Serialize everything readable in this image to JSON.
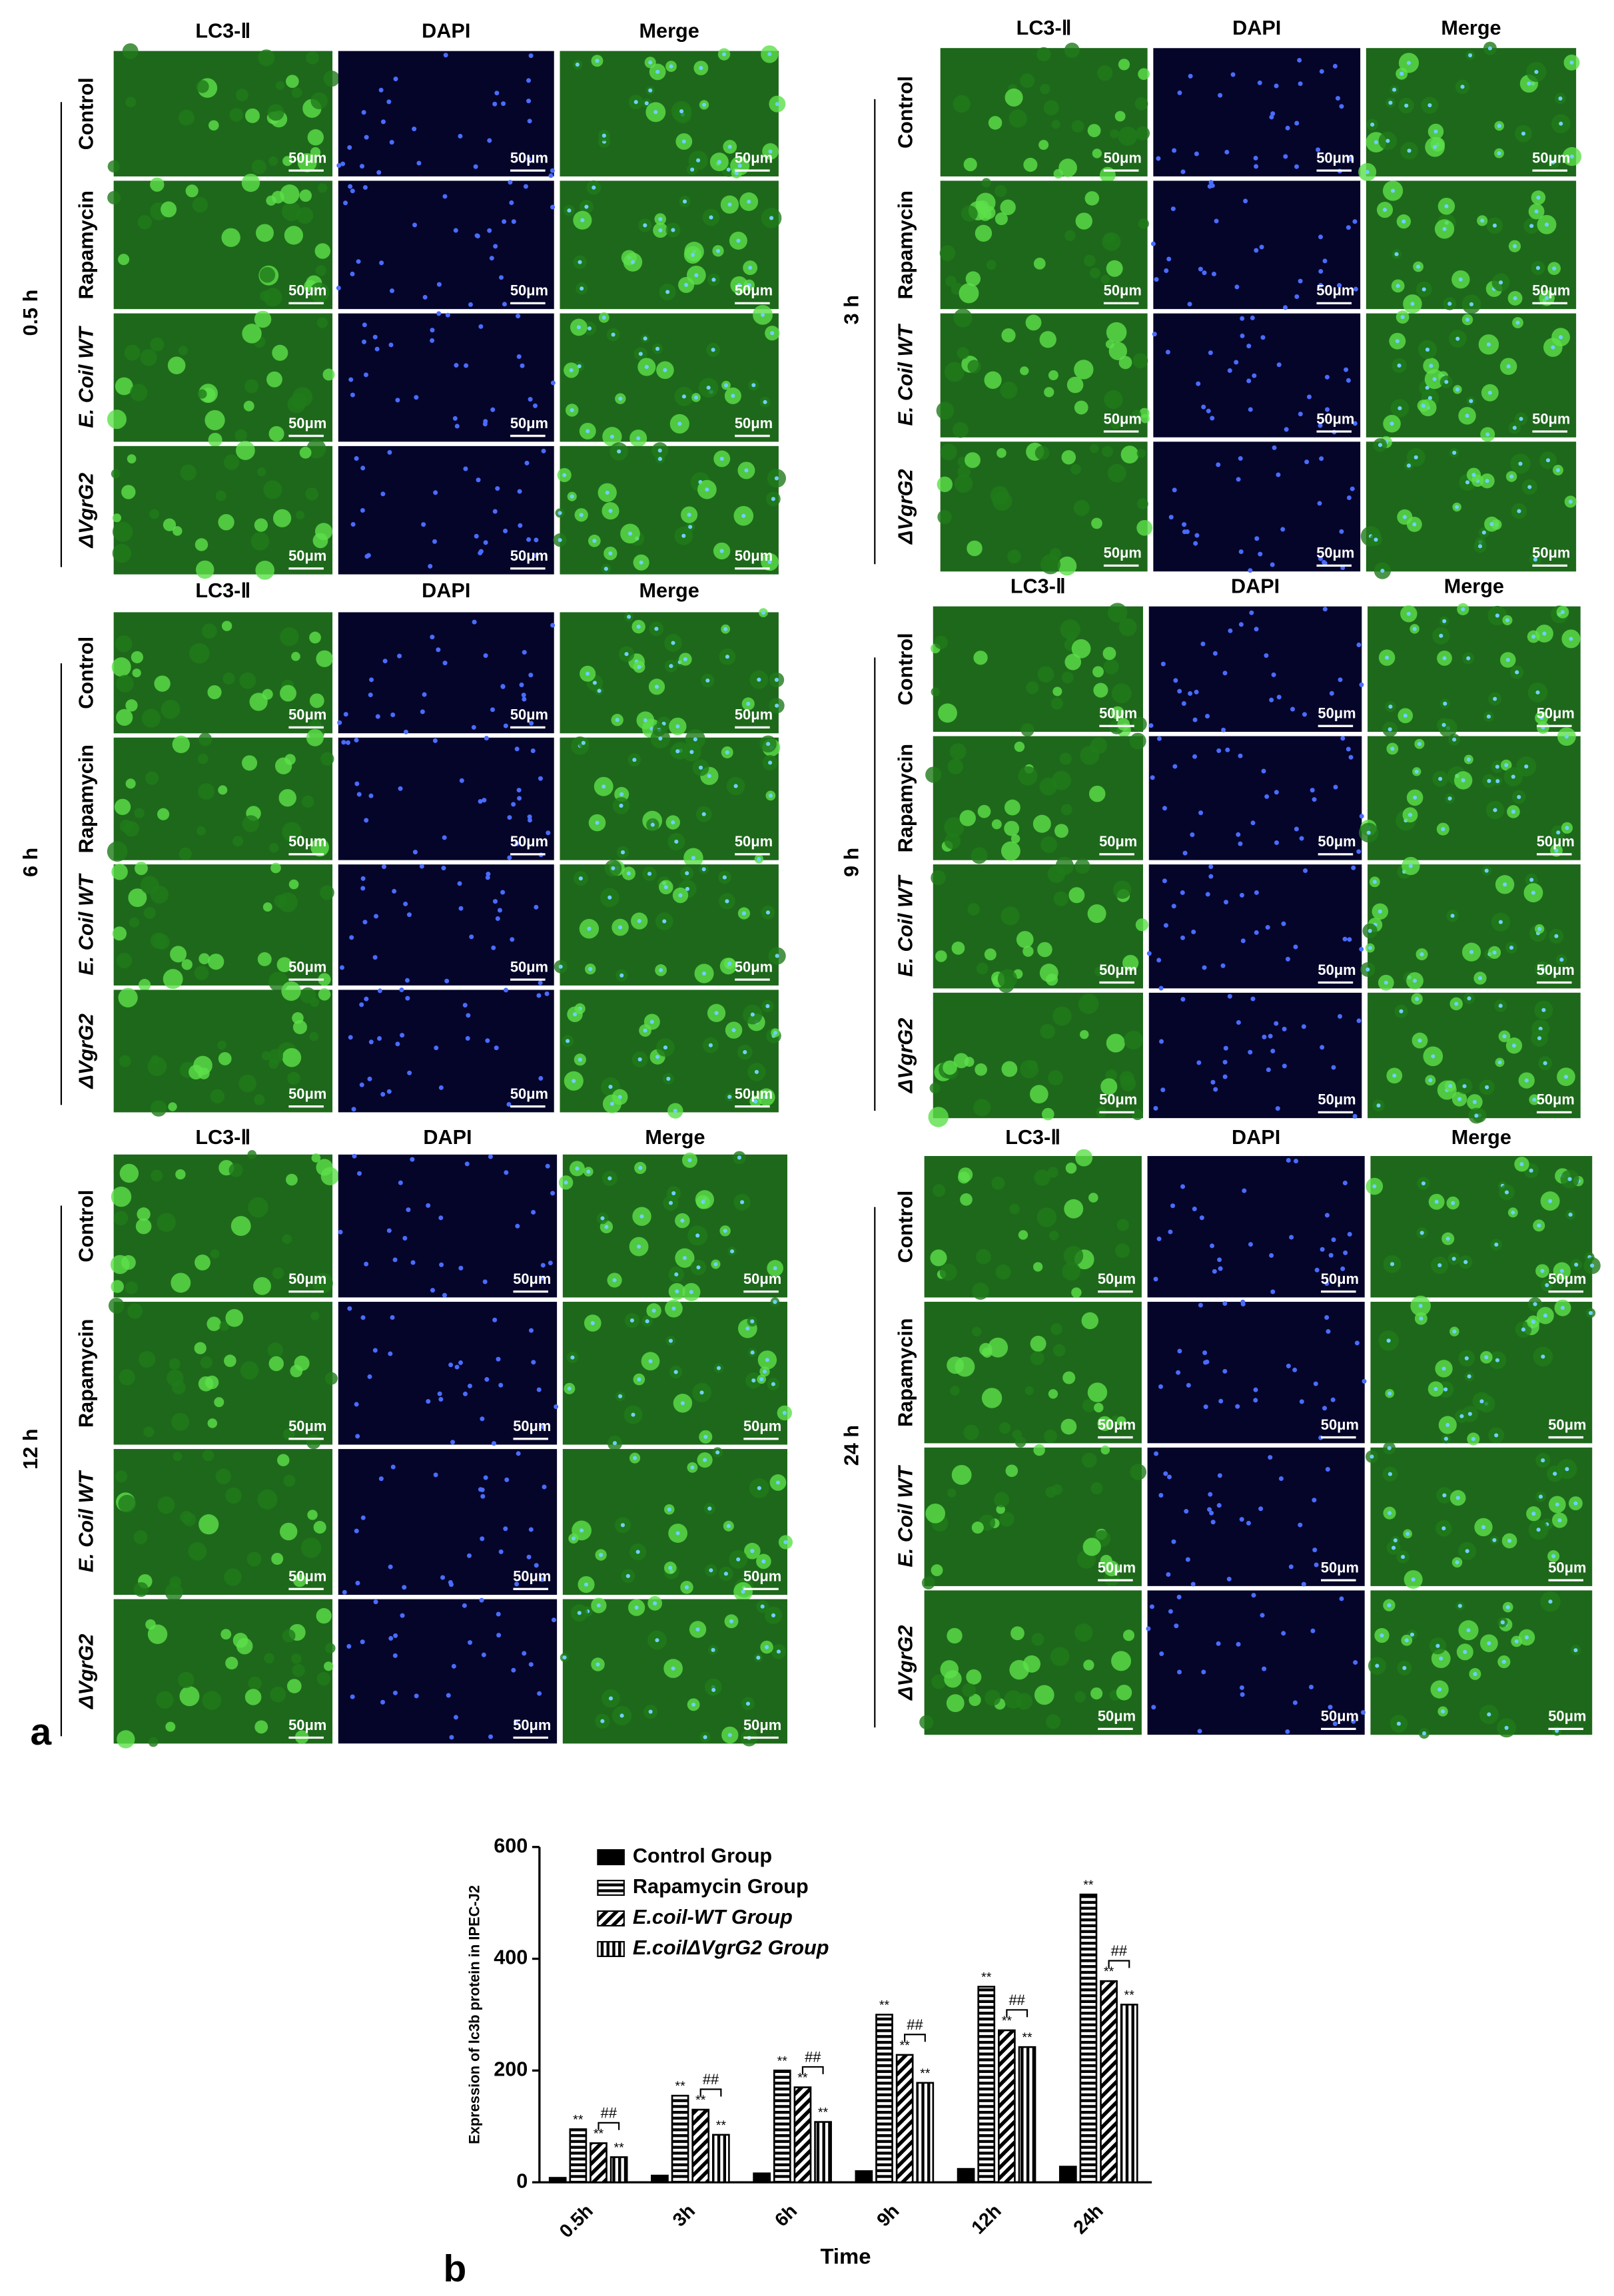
{
  "figure_a": {
    "label": "a",
    "scale_bar": "50μm",
    "panels": [
      {
        "time": "0.5 h",
        "columns": [
          "LC3-Ⅱ",
          "DAPI",
          "Merge"
        ],
        "rows": [
          "Control",
          "Rapamycin",
          "E. Coil WT",
          "ΔVgrG2"
        ]
      },
      {
        "time": "3 h",
        "columns": [
          "LC3-Ⅱ",
          "DAPI",
          "Merge"
        ],
        "rows": [
          "Control",
          "Rapamycin",
          "E. Coil WT",
          "ΔVgrG2"
        ]
      },
      {
        "time": "6 h",
        "columns": [
          "LC3-Ⅱ",
          "DAPI",
          "Merge"
        ],
        "rows": [
          "Control",
          "Rapamycin",
          "E. Coil WT",
          "ΔVgrG2"
        ]
      },
      {
        "time": "9 h",
        "columns": [
          "LC3-Ⅱ",
          "DAPI",
          "Merge"
        ],
        "rows": [
          "Control",
          "Rapamycin",
          "E. Coil WT",
          "ΔVgrG2"
        ]
      },
      {
        "time": "12 h",
        "columns": [
          "LC3-Ⅱ",
          "DAPI",
          "Merge"
        ],
        "rows": [
          "Control",
          "Rapamycin",
          "E. Coil WT",
          "ΔVgrG2"
        ]
      },
      {
        "time": "24 h",
        "columns": [
          "LC3-Ⅱ",
          "DAPI",
          "Merge"
        ],
        "rows": [
          "Control",
          "Rapamycin",
          "E. Coil WT",
          "ΔVgrG2"
        ]
      }
    ]
  },
  "chart_data": {
    "type": "bar",
    "panel_label": "b",
    "y_label": "Expression of lc3b protein in IPEC-J2",
    "x_label": "Time",
    "categories": [
      "0.5h",
      "3h",
      "6h",
      "9h",
      "12h",
      "24h"
    ],
    "series": [
      {
        "name": "Control Group",
        "color": "#000000",
        "hatch": "solid",
        "values": [
          8,
          12,
          16,
          20,
          24,
          28
        ]
      },
      {
        "name": "Rapamycin Group",
        "color": "#000000",
        "hatch": "horizontal",
        "values": [
          95,
          155,
          200,
          300,
          350,
          515
        ]
      },
      {
        "name": "E.coil-WT Group",
        "color": "#000000",
        "hatch": "diagonal",
        "values": [
          70,
          130,
          170,
          228,
          272,
          360
        ]
      },
      {
        "name": "E.coilΔVgrG2 Group",
        "color": "#000000",
        "hatch": "vertical",
        "values": [
          45,
          85,
          108,
          178,
          242,
          318
        ]
      }
    ],
    "ylim": [
      0,
      600
    ],
    "yticks": [
      0,
      200,
      400,
      600
    ],
    "significance_label": "**",
    "comparison_label": "##"
  }
}
